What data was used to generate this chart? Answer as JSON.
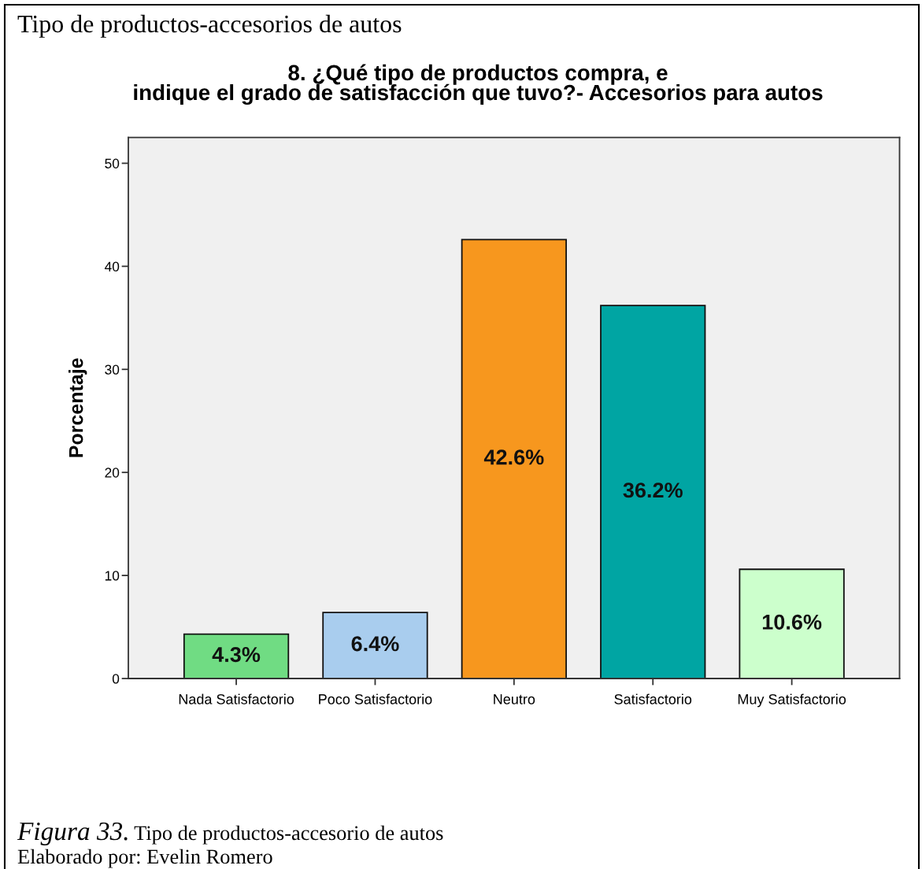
{
  "chart_data": {
    "type": "bar",
    "title": "8. ¿Qué tipo de productos compra, e\nindique el grado de satisfacción que tuvo?- Accesorios para autos",
    "ylabel": "Porcentaje",
    "categories": [
      "Nada Satisfactorio",
      "Poco Satisfactorio",
      "Neutro",
      "Satisfactorio",
      "Muy Satisfactorio"
    ],
    "values": [
      4.3,
      6.4,
      42.6,
      36.2,
      10.6
    ],
    "colors": [
      "#70dc83",
      "#a9cdee",
      "#f7971e",
      "#00a5a3",
      "#ccffcc"
    ],
    "value_labels": [
      "4.3%",
      "6.4%",
      "42.6%",
      "36.2%",
      "10.6%"
    ],
    "ylim": [
      0,
      52.5
    ],
    "yticks": [
      0,
      10,
      20,
      30,
      40,
      50
    ],
    "annotations": [
      "Tipo de productos-accesorios de autos",
      "Figura 33.",
      "Tipo de productos-accesorio de autos",
      "Elaborado por: Evelin Romero"
    ]
  }
}
